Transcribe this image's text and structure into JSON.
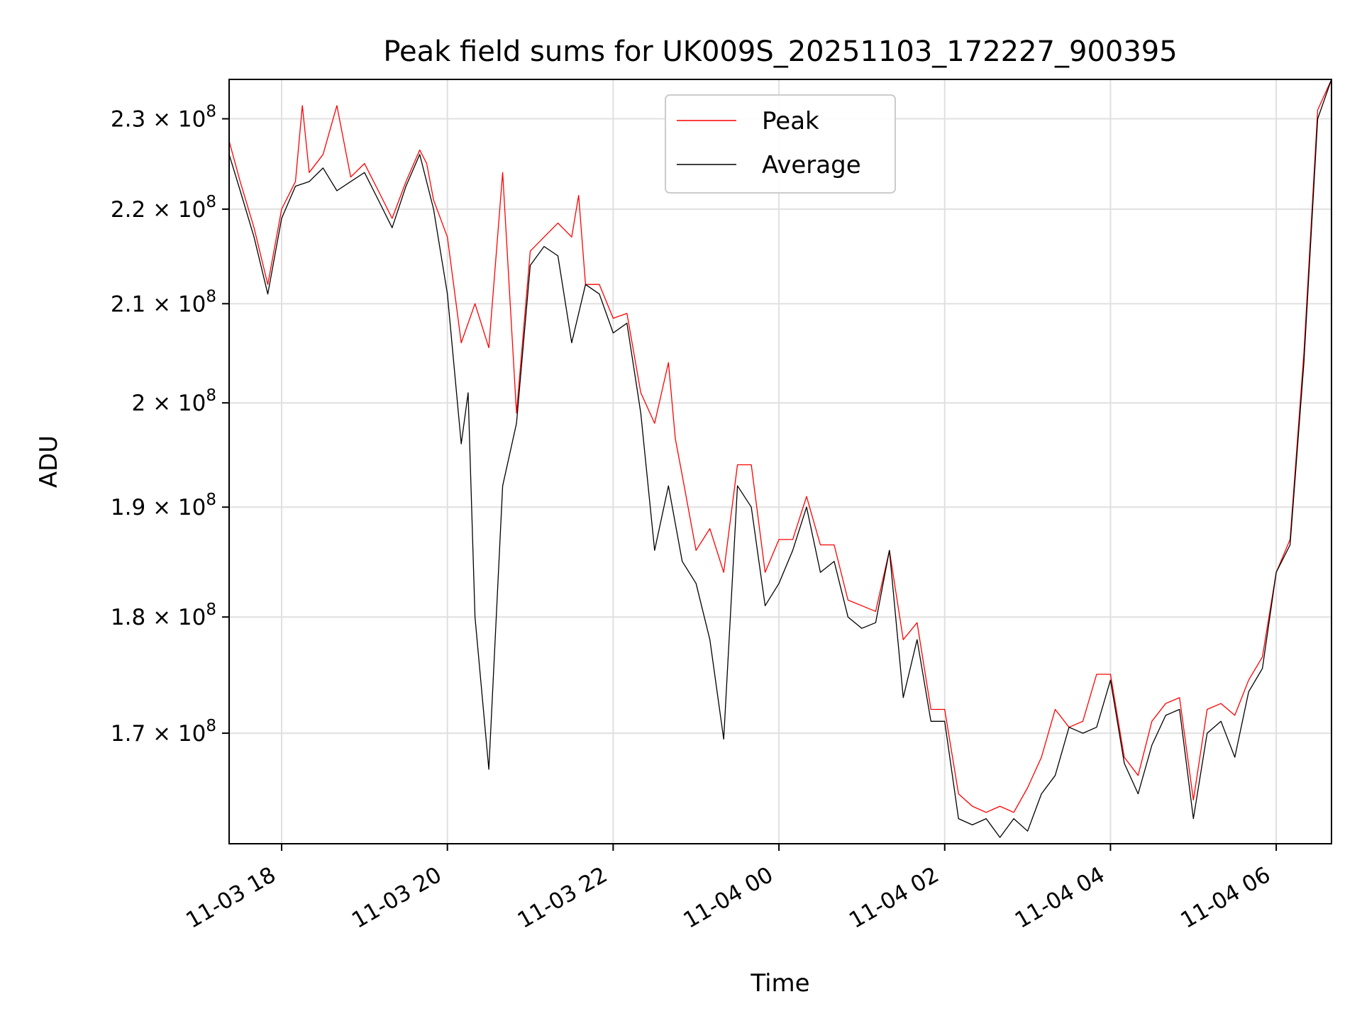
{
  "chart_data": {
    "type": "line",
    "title": "Peak field sums for UK009S_20251103_172227_900395",
    "xlabel": "Time",
    "ylabel": "ADU",
    "x_unit": "datetime",
    "xlim": [
      "2025-11-03T17:22",
      "2025-11-04T06:40"
    ],
    "ylim": [
      161000000.0,
      234500000.0
    ],
    "y_scale": "log",
    "grid": true,
    "legend_position": "upper center",
    "x_tick_labels": [
      "11-03 18",
      "11-03 20",
      "11-03 22",
      "11-04 00",
      "11-04 02",
      "11-04 04",
      "11-04 06"
    ],
    "x_ticks": [
      "2025-11-03T18:00",
      "2025-11-03T20:00",
      "2025-11-03T22:00",
      "2025-11-04T00:00",
      "2025-11-04T02:00",
      "2025-11-04T04:00",
      "2025-11-04T06:00"
    ],
    "y_ticks": [
      {
        "value": 230000000,
        "mantissa": "2.3"
      },
      {
        "value": 220000000,
        "mantissa": "2.2"
      },
      {
        "value": 210000000,
        "mantissa": "2.1"
      },
      {
        "value": 200000000,
        "mantissa": "2"
      },
      {
        "value": 190000000,
        "mantissa": "1.9"
      },
      {
        "value": 180000000,
        "mantissa": "1.8"
      },
      {
        "value": 170000000,
        "mantissa": "1.7"
      }
    ],
    "y_tick_suffix": "× 10",
    "y_tick_exponent": "8",
    "series": [
      {
        "name": "Peak",
        "color": "#ff0000",
        "x": [
          "2025-11-03T17:22",
          "2025-11-03T17:30",
          "2025-11-03T17:40",
          "2025-11-03T17:50",
          "2025-11-03T18:00",
          "2025-11-03T18:10",
          "2025-11-03T18:15",
          "2025-11-03T18:20",
          "2025-11-03T18:30",
          "2025-11-03T18:40",
          "2025-11-03T18:50",
          "2025-11-03T19:00",
          "2025-11-03T19:10",
          "2025-11-03T19:20",
          "2025-11-03T19:30",
          "2025-11-03T19:40",
          "2025-11-03T19:45",
          "2025-11-03T19:50",
          "2025-11-03T20:00",
          "2025-11-03T20:10",
          "2025-11-03T20:20",
          "2025-11-03T20:30",
          "2025-11-03T20:40",
          "2025-11-03T20:50",
          "2025-11-03T21:00",
          "2025-11-03T21:10",
          "2025-11-03T21:20",
          "2025-11-03T21:30",
          "2025-11-03T21:35",
          "2025-11-03T21:40",
          "2025-11-03T21:50",
          "2025-11-03T22:00",
          "2025-11-03T22:10",
          "2025-11-03T22:20",
          "2025-11-03T22:30",
          "2025-11-03T22:40",
          "2025-11-03T22:45",
          "2025-11-03T22:50",
          "2025-11-03T23:00",
          "2025-11-03T23:10",
          "2025-11-03T23:20",
          "2025-11-03T23:30",
          "2025-11-03T23:40",
          "2025-11-03T23:50",
          "2025-11-04T00:00",
          "2025-11-04T00:10",
          "2025-11-04T00:20",
          "2025-11-04T00:30",
          "2025-11-04T00:40",
          "2025-11-04T00:50",
          "2025-11-04T01:00",
          "2025-11-04T01:10",
          "2025-11-04T01:20",
          "2025-11-04T01:30",
          "2025-11-04T01:40",
          "2025-11-04T01:50",
          "2025-11-04T02:00",
          "2025-11-04T02:10",
          "2025-11-04T02:20",
          "2025-11-04T02:30",
          "2025-11-04T02:40",
          "2025-11-04T02:50",
          "2025-11-04T03:00",
          "2025-11-04T03:10",
          "2025-11-04T03:20",
          "2025-11-04T03:30",
          "2025-11-04T03:40",
          "2025-11-04T03:50",
          "2025-11-04T04:00",
          "2025-11-04T04:10",
          "2025-11-04T04:20",
          "2025-11-04T04:30",
          "2025-11-04T04:40",
          "2025-11-04T04:50",
          "2025-11-04T05:00",
          "2025-11-04T05:10",
          "2025-11-04T05:20",
          "2025-11-04T05:30",
          "2025-11-04T05:40",
          "2025-11-04T05:50",
          "2025-11-04T06:00",
          "2025-11-04T06:10",
          "2025-11-04T06:20",
          "2025-11-04T06:30",
          "2025-11-04T06:40"
        ],
        "values": [
          227500000,
          223000000,
          218000000,
          212000000,
          220000000,
          223000000,
          231500000,
          224000000,
          226000000,
          231500000,
          223500000,
          225000000,
          222000000,
          219000000,
          223000000,
          226500000,
          225000000,
          221000000,
          217000000,
          206000000,
          210000000,
          205500000,
          224000000,
          199000000,
          215500000,
          217000000,
          218500000,
          217000000,
          221500000,
          212000000,
          212000000,
          208500000,
          209000000,
          201000000,
          198000000,
          204000000,
          196500000,
          193000000,
          186000000,
          188000000,
          184000000,
          194000000,
          194000000,
          184000000,
          187000000,
          187000000,
          191000000,
          186500000,
          186500000,
          181500000,
          181000000,
          180500000,
          186000000,
          178000000,
          179500000,
          172000000,
          172000000,
          165000000,
          164000000,
          163500000,
          164000000,
          163500000,
          165500000,
          168000000,
          172000000,
          170500000,
          171000000,
          175000000,
          175000000,
          168000000,
          166500000,
          171000000,
          172500000,
          173000000,
          164500000,
          172000000,
          172500000,
          171500000,
          174500000,
          176500000,
          184000000,
          187000000,
          205000000,
          231000000,
          234500000
        ],
        "stroke_width": 1.3
      },
      {
        "name": "Average",
        "color": "#000000",
        "x": [
          "2025-11-03T17:22",
          "2025-11-03T17:30",
          "2025-11-03T17:40",
          "2025-11-03T17:50",
          "2025-11-03T18:00",
          "2025-11-03T18:10",
          "2025-11-03T18:20",
          "2025-11-03T18:30",
          "2025-11-03T18:40",
          "2025-11-03T18:50",
          "2025-11-03T19:00",
          "2025-11-03T19:10",
          "2025-11-03T19:20",
          "2025-11-03T19:30",
          "2025-11-03T19:40",
          "2025-11-03T19:50",
          "2025-11-03T20:00",
          "2025-11-03T20:10",
          "2025-11-03T20:15",
          "2025-11-03T20:20",
          "2025-11-03T20:30",
          "2025-11-03T20:40",
          "2025-11-03T20:50",
          "2025-11-03T21:00",
          "2025-11-03T21:10",
          "2025-11-03T21:20",
          "2025-11-03T21:30",
          "2025-11-03T21:40",
          "2025-11-03T21:50",
          "2025-11-03T22:00",
          "2025-11-03T22:10",
          "2025-11-03T22:20",
          "2025-11-03T22:30",
          "2025-11-03T22:40",
          "2025-11-03T22:50",
          "2025-11-03T23:00",
          "2025-11-03T23:10",
          "2025-11-03T23:20",
          "2025-11-03T23:30",
          "2025-11-03T23:40",
          "2025-11-03T23:50",
          "2025-11-04T00:00",
          "2025-11-04T00:10",
          "2025-11-04T00:20",
          "2025-11-04T00:30",
          "2025-11-04T00:40",
          "2025-11-04T00:50",
          "2025-11-04T01:00",
          "2025-11-04T01:10",
          "2025-11-04T01:20",
          "2025-11-04T01:30",
          "2025-11-04T01:40",
          "2025-11-04T01:50",
          "2025-11-04T02:00",
          "2025-11-04T02:10",
          "2025-11-04T02:20",
          "2025-11-04T02:30",
          "2025-11-04T02:40",
          "2025-11-04T02:50",
          "2025-11-04T03:00",
          "2025-11-04T03:10",
          "2025-11-04T03:20",
          "2025-11-04T03:30",
          "2025-11-04T03:40",
          "2025-11-04T03:50",
          "2025-11-04T04:00",
          "2025-11-04T04:10",
          "2025-11-04T04:20",
          "2025-11-04T04:30",
          "2025-11-04T04:40",
          "2025-11-04T04:50",
          "2025-11-04T05:00",
          "2025-11-04T05:10",
          "2025-11-04T05:20",
          "2025-11-04T05:30",
          "2025-11-04T05:40",
          "2025-11-04T05:50",
          "2025-11-04T06:00",
          "2025-11-04T06:10",
          "2025-11-04T06:20",
          "2025-11-04T06:30",
          "2025-11-04T06:40"
        ],
        "values": [
          226000000,
          222000000,
          217000000,
          211000000,
          219000000,
          222500000,
          223000000,
          224500000,
          222000000,
          223000000,
          224000000,
          221000000,
          218000000,
          222500000,
          226000000,
          220000000,
          211000000,
          196000000,
          201000000,
          180000000,
          167000000,
          192000000,
          198000000,
          214000000,
          216000000,
          215000000,
          206000000,
          212000000,
          211000000,
          207000000,
          208000000,
          199000000,
          186000000,
          192000000,
          185000000,
          183000000,
          178000000,
          169500000,
          192000000,
          190000000,
          181000000,
          183000000,
          186000000,
          190000000,
          184000000,
          185000000,
          180000000,
          179000000,
          179500000,
          186000000,
          173000000,
          178000000,
          171000000,
          171000000,
          163000000,
          162500000,
          163000000,
          161500000,
          163000000,
          162000000,
          165000000,
          166500000,
          170500000,
          170000000,
          170500000,
          174500000,
          167500000,
          165000000,
          169000000,
          171500000,
          172000000,
          163000000,
          170000000,
          171000000,
          168000000,
          173500000,
          175500000,
          184000000,
          186500000,
          204000000,
          230000000,
          234500000
        ],
        "stroke_width": 1.3
      }
    ]
  }
}
